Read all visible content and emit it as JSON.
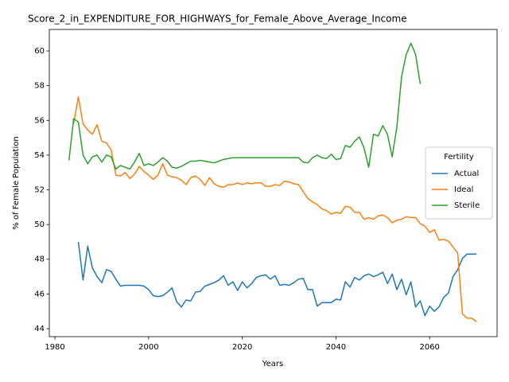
{
  "chart_data": {
    "type": "line",
    "title": "Score_2_in_EXPENDITURE_FOR_HIGHWAYS_for_Female_Above_Average_Income",
    "x_label": "Years",
    "y_label": "% of Female Population",
    "legend_title": "Fertility",
    "legend": "center right",
    "x": [
      1983,
      1984,
      1985,
      1986,
      1987,
      1988,
      1989,
      1990,
      1991,
      1992,
      1993,
      1994,
      1995,
      1996,
      1997,
      1998,
      1999,
      2000,
      2001,
      2002,
      2003,
      2004,
      2005,
      2006,
      2007,
      2008,
      2009,
      2010,
      2011,
      2012,
      2013,
      2014,
      2015,
      2016,
      2017,
      2018,
      2019,
      2020,
      2021,
      2022,
      2023,
      2024,
      2025,
      2026,
      2027,
      2028,
      2029,
      2030,
      2031,
      2032,
      2033,
      2034,
      2035,
      2036,
      2037,
      2038,
      2039,
      2040,
      2041,
      2042,
      2043,
      2044,
      2045,
      2046,
      2047,
      2048,
      2049,
      2050,
      2051,
      2052,
      2053,
      2054,
      2055,
      2056,
      2057,
      2058,
      2059,
      2060,
      2061,
      2062,
      2063,
      2064,
      2065,
      2066,
      2067,
      2068,
      2069,
      2070
    ],
    "series": [
      {
        "name": "Actual",
        "color": "#1f77b4",
        "values": [
          null,
          null,
          49.0,
          46.8,
          48.75,
          47.5,
          47.0,
          46.65,
          47.4,
          47.3,
          46.85,
          46.45,
          46.5,
          46.5,
          46.5,
          46.5,
          46.45,
          46.25,
          45.9,
          45.85,
          45.9,
          46.1,
          46.35,
          45.55,
          45.25,
          45.65,
          45.6,
          46.1,
          46.15,
          46.45,
          46.55,
          46.65,
          46.8,
          47.05,
          46.5,
          46.7,
          46.2,
          46.7,
          46.35,
          46.6,
          46.95,
          47.05,
          47.1,
          46.85,
          47.05,
          46.5,
          46.55,
          46.5,
          46.65,
          46.85,
          46.9,
          46.25,
          46.25,
          45.3,
          45.5,
          45.5,
          45.5,
          45.7,
          45.65,
          46.7,
          46.4,
          46.95,
          46.8,
          47.05,
          47.15,
          47.0,
          47.1,
          47.25,
          46.6,
          47.15,
          46.25,
          46.85,
          45.95,
          46.7,
          45.25,
          45.6,
          44.75,
          45.3,
          45.0,
          45.25,
          45.8,
          46.05,
          47.0,
          47.4,
          48.05,
          48.3,
          48.3,
          48.3
        ]
      },
      {
        "name": "Ideal",
        "color": "#ff7f0e",
        "values": [
          null,
          55.8,
          57.35,
          55.8,
          55.45,
          55.2,
          55.75,
          54.8,
          54.7,
          54.3,
          52.85,
          52.8,
          53.0,
          52.65,
          52.9,
          53.35,
          53.05,
          52.85,
          52.6,
          52.85,
          53.5,
          52.85,
          52.75,
          52.7,
          52.55,
          52.3,
          52.7,
          52.8,
          52.6,
          52.25,
          52.7,
          52.35,
          52.2,
          52.15,
          52.3,
          52.3,
          52.4,
          52.3,
          52.4,
          52.35,
          52.4,
          52.4,
          52.2,
          52.2,
          52.3,
          52.25,
          52.5,
          52.45,
          52.35,
          52.3,
          51.9,
          51.5,
          51.3,
          51.15,
          50.9,
          50.8,
          50.6,
          50.7,
          50.65,
          51.05,
          51.0,
          50.7,
          50.7,
          50.3,
          50.4,
          50.3,
          50.5,
          50.55,
          50.4,
          50.1,
          50.25,
          50.3,
          50.45,
          50.4,
          50.4,
          50.05,
          49.9,
          49.55,
          49.7,
          49.1,
          49.15,
          49.05,
          48.7,
          48.35,
          44.85,
          44.6,
          44.6,
          44.4
        ]
      },
      {
        "name": "Sterile",
        "color": "#2ca02c",
        "values": [
          53.7,
          56.1,
          55.9,
          54.0,
          53.5,
          53.9,
          54.0,
          53.6,
          54.0,
          53.9,
          53.2,
          53.4,
          53.3,
          53.2,
          53.6,
          54.1,
          53.4,
          53.5,
          53.4,
          53.6,
          53.85,
          53.65,
          53.3,
          53.25,
          53.35,
          53.5,
          53.65,
          53.65,
          53.7,
          53.65,
          53.6,
          53.55,
          53.65,
          53.75,
          53.8,
          53.85,
          53.85,
          53.85,
          53.85,
          53.85,
          53.85,
          53.85,
          53.85,
          53.85,
          53.85,
          53.85,
          53.85,
          53.85,
          53.85,
          53.85,
          53.6,
          53.55,
          53.85,
          54.0,
          53.85,
          53.8,
          54.05,
          53.75,
          53.8,
          54.55,
          54.45,
          54.8,
          55.05,
          54.4,
          53.3,
          55.2,
          55.1,
          55.7,
          55.2,
          53.9,
          55.6,
          58.5,
          59.8,
          60.45,
          59.8,
          58.1,
          null,
          null,
          null,
          null,
          null,
          null,
          null,
          null,
          null,
          null,
          null,
          null
        ]
      }
    ],
    "xlim": [
      1978.8,
      2074.4
    ],
    "xticks": [
      1980,
      2000,
      2020,
      2040,
      2060
    ],
    "ylim": [
      43.54,
      61.24
    ],
    "yticks": [
      44,
      46,
      48,
      50,
      52,
      54,
      56,
      58,
      60
    ]
  }
}
